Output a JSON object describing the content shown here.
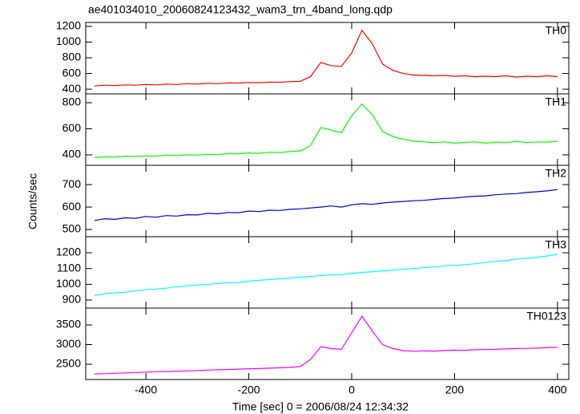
{
  "chart_data": [
    {
      "type": "line",
      "title": "ae401034010_20060824123432_wam3_trn_4band_long.qdp",
      "label": "TH0",
      "color": "#ff0000",
      "x": [
        -500,
        -480,
        -460,
        -440,
        -420,
        -400,
        -380,
        -360,
        -340,
        -320,
        -300,
        -280,
        -260,
        -240,
        -220,
        -200,
        -180,
        -160,
        -140,
        -120,
        -100,
        -80,
        -60,
        -40,
        -20,
        0,
        20,
        40,
        60,
        80,
        100,
        120,
        140,
        160,
        180,
        200,
        220,
        240,
        260,
        280,
        300,
        320,
        340,
        360,
        380,
        400
      ],
      "values": [
        440,
        450,
        445,
        455,
        450,
        460,
        455,
        465,
        460,
        470,
        465,
        475,
        470,
        480,
        478,
        485,
        482,
        490,
        488,
        495,
        500,
        560,
        740,
        700,
        690,
        860,
        1150,
        980,
        720,
        640,
        600,
        580,
        575,
        570,
        575,
        565,
        570,
        560,
        565,
        560,
        570,
        555,
        565,
        560,
        570,
        560
      ],
      "xlim": [
        -517,
        422
      ],
      "ylim": [
        340,
        1250
      ],
      "yticks": [
        400,
        600,
        800,
        1000,
        1200
      ]
    },
    {
      "type": "line",
      "label": "TH1",
      "color": "#00ff00",
      "x": [
        -500,
        -480,
        -460,
        -440,
        -420,
        -400,
        -380,
        -360,
        -340,
        -320,
        -300,
        -280,
        -260,
        -240,
        -220,
        -200,
        -180,
        -160,
        -140,
        -120,
        -100,
        -80,
        -60,
        -40,
        -20,
        0,
        20,
        40,
        60,
        80,
        100,
        120,
        140,
        160,
        180,
        200,
        220,
        240,
        260,
        280,
        300,
        320,
        340,
        360,
        380,
        400
      ],
      "values": [
        380,
        385,
        382,
        390,
        388,
        392,
        390,
        398,
        395,
        400,
        398,
        405,
        402,
        410,
        408,
        415,
        412,
        420,
        418,
        425,
        430,
        470,
        610,
        590,
        570,
        700,
        790,
        710,
        580,
        540,
        520,
        505,
        500,
        495,
        500,
        490,
        495,
        500,
        490,
        498,
        495,
        502,
        495,
        500,
        498,
        505
      ],
      "xlim": [
        -517,
        422
      ],
      "ylim": [
        320,
        868
      ],
      "yticks": [
        400,
        600,
        800
      ]
    },
    {
      "type": "line",
      "label": "TH2",
      "color": "#0000e0",
      "ylabel": "Counts/sec",
      "x": [
        -500,
        -480,
        -460,
        -440,
        -420,
        -400,
        -380,
        -360,
        -340,
        -320,
        -300,
        -280,
        -260,
        -240,
        -220,
        -200,
        -180,
        -160,
        -140,
        -120,
        -100,
        -80,
        -60,
        -40,
        -20,
        0,
        20,
        40,
        60,
        80,
        100,
        120,
        140,
        160,
        180,
        200,
        220,
        240,
        260,
        280,
        300,
        320,
        340,
        360,
        380,
        400
      ],
      "values": [
        540,
        548,
        545,
        552,
        550,
        558,
        555,
        562,
        560,
        566,
        565,
        572,
        570,
        576,
        575,
        582,
        580,
        586,
        585,
        590,
        592,
        596,
        600,
        605,
        600,
        610,
        615,
        612,
        618,
        622,
        625,
        628,
        630,
        634,
        638,
        640,
        645,
        648,
        650,
        655,
        658,
        660,
        665,
        668,
        672,
        678
      ],
      "xlim": [
        -517,
        422
      ],
      "ylim": [
        468,
        786
      ],
      "yticks": [
        500,
        600,
        700
      ]
    },
    {
      "type": "line",
      "label": "TH3",
      "color": "#00ffff",
      "x": [
        -500,
        -480,
        -460,
        -440,
        -420,
        -400,
        -380,
        -360,
        -340,
        -320,
        -300,
        -280,
        -260,
        -240,
        -220,
        -200,
        -180,
        -160,
        -140,
        -120,
        -100,
        -80,
        -60,
        -40,
        -20,
        0,
        20,
        40,
        60,
        80,
        100,
        120,
        140,
        160,
        180,
        200,
        220,
        240,
        260,
        280,
        300,
        320,
        340,
        360,
        380,
        400
      ],
      "values": [
        930,
        940,
        945,
        950,
        958,
        965,
        970,
        975,
        985,
        990,
        995,
        1000,
        1005,
        1010,
        1012,
        1020,
        1025,
        1030,
        1035,
        1040,
        1045,
        1050,
        1055,
        1060,
        1062,
        1070,
        1075,
        1080,
        1085,
        1090,
        1095,
        1100,
        1105,
        1110,
        1115,
        1120,
        1125,
        1130,
        1140,
        1145,
        1150,
        1160,
        1165,
        1170,
        1180,
        1190
      ],
      "xlim": [
        -517,
        422
      ],
      "ylim": [
        849,
        1302
      ],
      "yticks": [
        900,
        1000,
        1100,
        1200
      ]
    },
    {
      "type": "line",
      "label": "TH0123",
      "color": "#ff00ff",
      "xlabel": "Time [sec] 0 = 2006/08/24 12:34:32",
      "x": [
        -500,
        -480,
        -460,
        -440,
        -420,
        -400,
        -380,
        -360,
        -340,
        -320,
        -300,
        -280,
        -260,
        -240,
        -220,
        -200,
        -180,
        -160,
        -140,
        -120,
        -100,
        -80,
        -60,
        -40,
        -20,
        0,
        20,
        40,
        60,
        80,
        100,
        120,
        140,
        160,
        180,
        200,
        220,
        240,
        260,
        280,
        300,
        320,
        340,
        360,
        380,
        400
      ],
      "values": [
        2250,
        2260,
        2270,
        2280,
        2290,
        2300,
        2310,
        2315,
        2325,
        2330,
        2340,
        2350,
        2360,
        2365,
        2375,
        2385,
        2390,
        2400,
        2410,
        2420,
        2440,
        2620,
        2950,
        2900,
        2880,
        3300,
        3720,
        3350,
        3000,
        2900,
        2850,
        2830,
        2840,
        2835,
        2850,
        2860,
        2855,
        2870,
        2875,
        2880,
        2890,
        2900,
        2905,
        2910,
        2920,
        2930
      ],
      "xlim": [
        -517,
        422
      ],
      "ylim": [
        2112,
        3929
      ],
      "yticks": [
        2500,
        3000,
        3500
      ],
      "xticks": [
        -400,
        -200,
        0,
        200,
        400
      ]
    }
  ]
}
